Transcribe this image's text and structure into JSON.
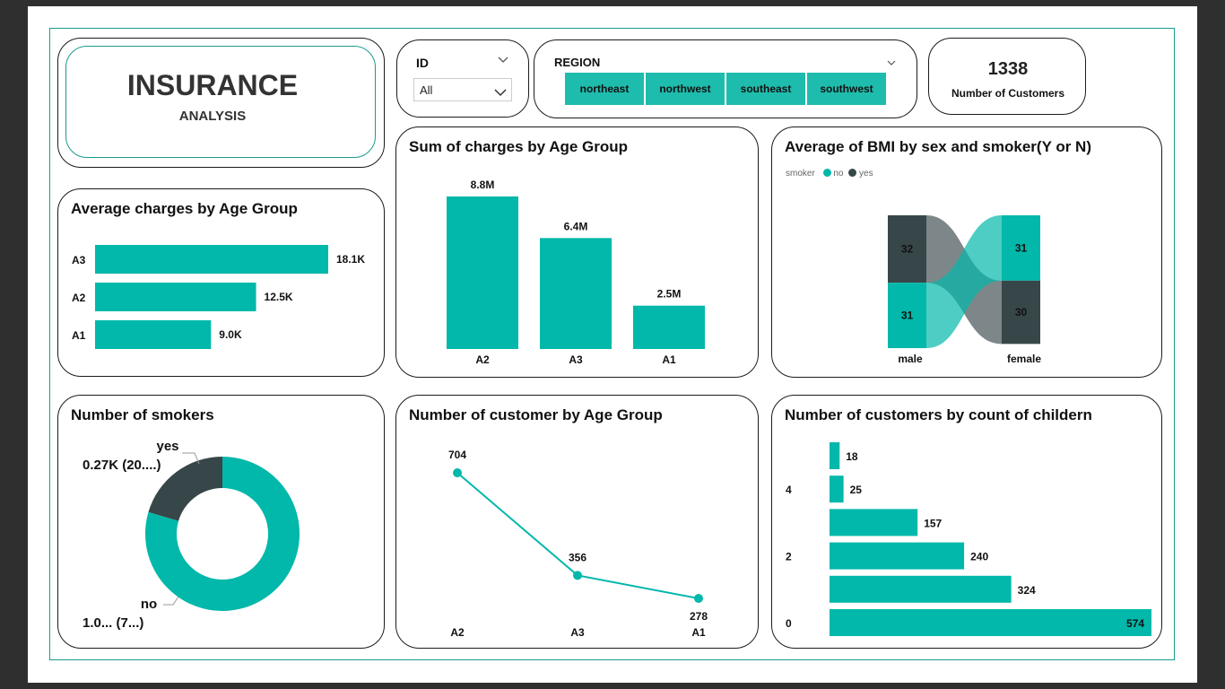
{
  "title": {
    "main": "INSURANCE",
    "sub": "ANALYSIS"
  },
  "id_slicer": {
    "label": "ID",
    "value": "All",
    "icon": "chevron-down-icon"
  },
  "region_slicer": {
    "label": "REGION",
    "options": [
      "northeast",
      "northwest",
      "southeast",
      "southwest"
    ],
    "icon": "chevron-down-icon"
  },
  "kpi": {
    "value": "1338",
    "label": "Number of Customers"
  },
  "colors": {
    "teal": "#01b8aa",
    "dark": "#374649",
    "gray": "#7f7f7f"
  },
  "charts": {
    "avg_charges": {
      "title": "Average charges by Age Group",
      "chart_data": {
        "type": "bar",
        "orientation": "horizontal",
        "categories": [
          "A3",
          "A2",
          "A1"
        ],
        "values": [
          18.1,
          12.5,
          9.0
        ],
        "labels": [
          "18.1K",
          "12.5K",
          "9.0K"
        ],
        "xlim": [
          0,
          19.5
        ]
      }
    },
    "sum_charges": {
      "title": "Sum of charges by Age Group",
      "chart_data": {
        "type": "bar",
        "categories": [
          "A2",
          "A3",
          "A1"
        ],
        "values": [
          8.8,
          6.4,
          2.5
        ],
        "labels": [
          "8.8M",
          "6.4M",
          "2.5M"
        ],
        "ylim": [
          0,
          8.8
        ]
      }
    },
    "bmi": {
      "title": "Average of BMI by sex and smoker(Y or N)",
      "legend": {
        "title": "smoker",
        "items": [
          "no",
          "yes"
        ]
      },
      "chart_data": {
        "type": "ribbon",
        "categories": [
          "male",
          "female"
        ],
        "series": [
          {
            "name": "yes",
            "values": [
              32,
              30
            ],
            "labels": [
              "32",
              "30"
            ]
          },
          {
            "name": "no",
            "values": [
              31,
              31
            ],
            "labels": [
              "31",
              "31"
            ]
          }
        ]
      }
    },
    "smokers": {
      "title": "Number of smokers",
      "chart_data": {
        "type": "pie",
        "donut": true,
        "categories": [
          "yes",
          "no"
        ],
        "values": [
          274,
          1064
        ],
        "labels": [
          "0.27K (20....)",
          "1.0... (7...)"
        ]
      }
    },
    "customers_age": {
      "title": "Number of customer by Age Group",
      "chart_data": {
        "type": "line",
        "categories": [
          "A2",
          "A3",
          "A1"
        ],
        "values": [
          704,
          356,
          278
        ],
        "labels": [
          "704",
          "356",
          "278"
        ],
        "ylim": [
          278,
          704
        ]
      }
    },
    "children": {
      "title": "Number of customers by count of childern",
      "chart_data": {
        "type": "bar",
        "orientation": "horizontal",
        "categories": [
          "",
          "4",
          "",
          "2",
          "",
          "0"
        ],
        "values": [
          18,
          25,
          157,
          240,
          324,
          574
        ],
        "labels": [
          "18",
          "25",
          "157",
          "240",
          "324",
          "574"
        ],
        "xlim": [
          0,
          574
        ]
      }
    }
  }
}
